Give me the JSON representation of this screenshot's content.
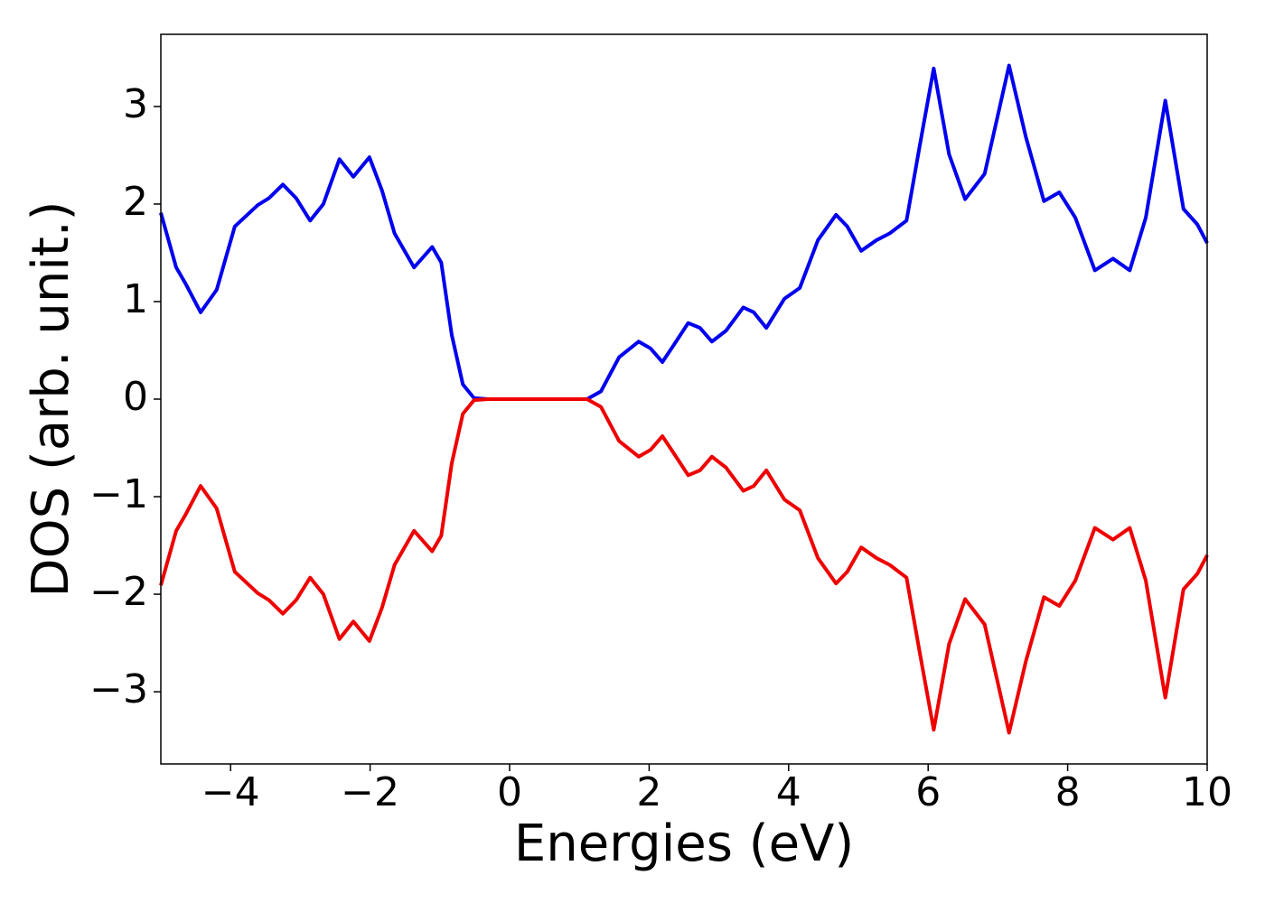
{
  "chart_data": {
    "type": "line",
    "xlabel": "Energies (eV)",
    "ylabel": "DOS (arb. unit.)",
    "x": [
      -5,
      -4.78,
      -4.65,
      -4.43,
      -4.2,
      -3.94,
      -3.61,
      -3.45,
      -3.25,
      -3.06,
      -2.86,
      -2.67,
      -2.44,
      -2.24,
      -2.01,
      -1.83,
      -1.65,
      -1.37,
      -1.11,
      -0.98,
      -0.83,
      -0.67,
      -0.51,
      -0.31,
      1.11,
      1.31,
      1.57,
      1.85,
      2.02,
      2.19,
      2.34,
      2.56,
      2.73,
      2.9,
      3.1,
      3.35,
      3.5,
      3.68,
      3.94,
      4.16,
      4.42,
      4.68,
      4.84,
      5.04,
      5.26,
      5.45,
      5.69,
      5.88,
      6.08,
      6.3,
      6.53,
      6.81,
      7.16,
      7.4,
      7.66,
      7.88,
      8.11,
      8.39,
      8.65,
      8.89,
      9.12,
      9.4,
      9.66,
      9.86,
      10
    ],
    "series": [
      {
        "color": "#0000ee",
        "values": [
          1.91,
          1.35,
          1.19,
          0.89,
          1.12,
          1.77,
          1.99,
          2.06,
          2.2,
          2.06,
          1.83,
          2.0,
          2.46,
          2.28,
          2.48,
          2.14,
          1.7,
          1.35,
          1.56,
          1.4,
          0.66,
          0.15,
          0.01,
          0,
          0,
          0.08,
          0.43,
          0.59,
          0.52,
          0.38,
          0.54,
          0.78,
          0.73,
          0.59,
          0.7,
          0.94,
          0.89,
          0.73,
          1.03,
          1.14,
          1.63,
          1.89,
          1.77,
          1.52,
          1.63,
          1.7,
          1.83,
          2.6,
          3.39,
          2.51,
          2.05,
          2.31,
          3.42,
          2.69,
          2.03,
          2.12,
          1.86,
          1.32,
          1.44,
          1.32,
          1.86,
          3.06,
          1.95,
          1.79,
          1.6
        ]
      },
      {
        "color": "#ee0000",
        "values": [
          -1.91,
          -1.35,
          -1.19,
          -0.89,
          -1.12,
          -1.77,
          -1.99,
          -2.06,
          -2.2,
          -2.06,
          -1.83,
          -2.0,
          -2.46,
          -2.28,
          -2.48,
          -2.14,
          -1.7,
          -1.35,
          -1.56,
          -1.4,
          -0.66,
          -0.15,
          -0.01,
          0,
          0,
          -0.08,
          -0.43,
          -0.59,
          -0.52,
          -0.38,
          -0.54,
          -0.78,
          -0.73,
          -0.59,
          -0.7,
          -0.94,
          -0.89,
          -0.73,
          -1.03,
          -1.14,
          -1.63,
          -1.89,
          -1.77,
          -1.52,
          -1.63,
          -1.7,
          -1.83,
          -2.6,
          -3.39,
          -2.51,
          -2.05,
          -2.31,
          -3.42,
          -2.69,
          -2.03,
          -2.12,
          -1.86,
          -1.32,
          -1.44,
          -1.32,
          -1.86,
          -3.06,
          -1.95,
          -1.79,
          -1.6
        ]
      }
    ],
    "xlim": [
      -5,
      10
    ],
    "xticks": [
      {
        "value": -4,
        "label": "−4"
      },
      {
        "value": -2,
        "label": "−2"
      },
      0,
      2,
      4,
      6,
      8,
      10
    ],
    "ylim": [
      -3.74,
      3.74
    ],
    "yticks": [
      {
        "value": -3,
        "label": "−3"
      },
      {
        "value": -2,
        "label": "−2"
      },
      {
        "value": -1,
        "label": "−1"
      },
      0,
      1,
      2,
      3
    ]
  }
}
